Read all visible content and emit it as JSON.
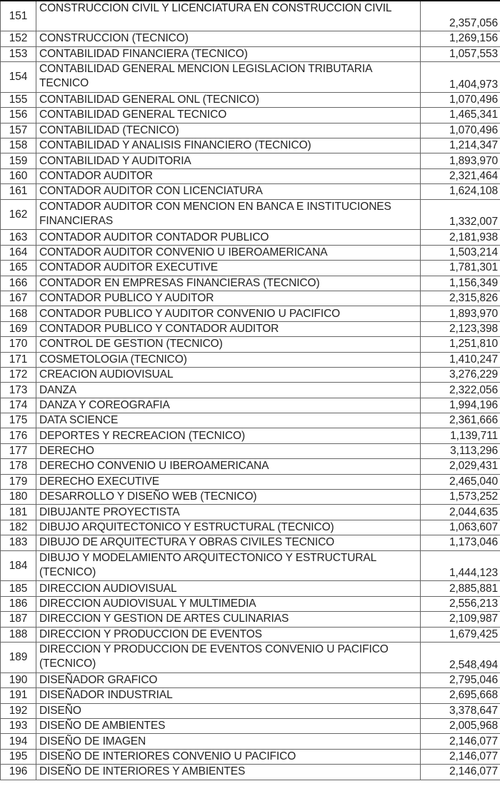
{
  "table": {
    "rows": [
      {
        "num": "151",
        "name": "CONSTRUCCION CIVIL Y LICENCIATURA EN CONSTRUCCION CIVIL",
        "value": "2,357,056",
        "wrap": true
      },
      {
        "num": "152",
        "name": "CONSTRUCCION (TECNICO)",
        "value": "1,269,156"
      },
      {
        "num": "153",
        "name": "CONTABILIDAD FINANCIERA (TECNICO)",
        "value": "1,057,553"
      },
      {
        "num": "154",
        "name": "CONTABILIDAD GENERAL MENCION LEGISLACION TRIBUTARIA TECNICO",
        "value": "1,404,973",
        "wrap": true
      },
      {
        "num": "155",
        "name": "CONTABILIDAD GENERAL ONL (TECNICO)",
        "value": "1,070,496"
      },
      {
        "num": "156",
        "name": "CONTABILIDAD GENERAL TECNICO",
        "value": "1,465,341"
      },
      {
        "num": "157",
        "name": "CONTABILIDAD (TECNICO)",
        "value": "1,070,496"
      },
      {
        "num": "158",
        "name": "CONTABILIDAD Y ANALISIS FINANCIERO (TECNICO)",
        "value": "1,214,347"
      },
      {
        "num": "159",
        "name": "CONTABILIDAD Y AUDITORIA",
        "value": "1,893,970"
      },
      {
        "num": "160",
        "name": "CONTADOR AUDITOR",
        "value": "2,321,464"
      },
      {
        "num": "161",
        "name": "CONTADOR AUDITOR CON LICENCIATURA",
        "value": "1,624,108"
      },
      {
        "num": "162",
        "name": "CONTADOR AUDITOR CON MENCION EN BANCA E INSTITUCIONES FINANCIERAS",
        "value": "1,332,007",
        "wrap": true
      },
      {
        "num": "163",
        "name": "CONTADOR AUDITOR CONTADOR PUBLICO",
        "value": "2,181,938"
      },
      {
        "num": "164",
        "name": "CONTADOR AUDITOR CONVENIO U IBEROAMERICANA",
        "value": "1,503,214"
      },
      {
        "num": "165",
        "name": "CONTADOR AUDITOR EXECUTIVE",
        "value": "1,781,301"
      },
      {
        "num": "166",
        "name": "CONTADOR EN EMPRESAS FINANCIERAS (TECNICO)",
        "value": "1,156,349"
      },
      {
        "num": "167",
        "name": "CONTADOR PUBLICO Y AUDITOR",
        "value": "2,315,826"
      },
      {
        "num": "168",
        "name": "CONTADOR PUBLICO Y AUDITOR CONVENIO U PACIFICO",
        "value": "1,893,970"
      },
      {
        "num": "169",
        "name": "CONTADOR PUBLICO Y CONTADOR AUDITOR",
        "value": "2,123,398"
      },
      {
        "num": "170",
        "name": "CONTROL DE GESTION (TECNICO)",
        "value": "1,251,810"
      },
      {
        "num": "171",
        "name": "COSMETOLOGIA (TECNICO)",
        "value": "1,410,247"
      },
      {
        "num": "172",
        "name": "CREACION AUDIOVISUAL",
        "value": "3,276,229"
      },
      {
        "num": "173",
        "name": "DANZA",
        "value": "2,322,056"
      },
      {
        "num": "174",
        "name": "DANZA Y COREOGRAFIA",
        "value": "1,994,196"
      },
      {
        "num": "175",
        "name": "DATA SCIENCE",
        "value": "2,361,666"
      },
      {
        "num": "176",
        "name": "DEPORTES Y RECREACION (TECNICO)",
        "value": "1,139,711"
      },
      {
        "num": "177",
        "name": "DERECHO",
        "value": "3,113,296"
      },
      {
        "num": "178",
        "name": "DERECHO CONVENIO U IBEROAMERICANA",
        "value": "2,029,431"
      },
      {
        "num": "179",
        "name": "DERECHO EXECUTIVE",
        "value": "2,465,040"
      },
      {
        "num": "180",
        "name": "DESARROLLO Y DISEÑO WEB (TECNICO)",
        "value": "1,573,252"
      },
      {
        "num": "181",
        "name": "DIBUJANTE PROYECTISTA",
        "value": "2,044,635"
      },
      {
        "num": "182",
        "name": "DIBUJO ARQUITECTONICO Y ESTRUCTURAL (TECNICO)",
        "value": "1,063,607"
      },
      {
        "num": "183",
        "name": "DIBUJO DE ARQUITECTURA Y OBRAS CIVILES TECNICO",
        "value": "1,173,046"
      },
      {
        "num": "184",
        "name": "DIBUJO Y MODELAMIENTO ARQUITECTONICO Y ESTRUCTURAL (TECNICO)",
        "value": "1,444,123",
        "wrap": true
      },
      {
        "num": "185",
        "name": "DIRECCION AUDIOVISUAL",
        "value": "2,885,881"
      },
      {
        "num": "186",
        "name": "DIRECCION AUDIOVISUAL Y MULTIMEDIA",
        "value": "2,556,213"
      },
      {
        "num": "187",
        "name": "DIRECCION Y GESTION DE ARTES CULINARIAS",
        "value": "2,109,987"
      },
      {
        "num": "188",
        "name": "DIRECCION Y PRODUCCION DE EVENTOS",
        "value": "1,679,425"
      },
      {
        "num": "189",
        "name": "DIRECCION Y PRODUCCION DE EVENTOS CONVENIO U PACIFICO (TECNICO)",
        "value": "2,548,494",
        "wrap": true
      },
      {
        "num": "190",
        "name": "DISEÑADOR GRAFICO",
        "value": "2,795,046"
      },
      {
        "num": "191",
        "name": "DISEÑADOR INDUSTRIAL",
        "value": "2,695,668"
      },
      {
        "num": "192",
        "name": "DISEÑO",
        "value": "3,378,647"
      },
      {
        "num": "193",
        "name": "DISEÑO DE AMBIENTES",
        "value": "2,005,968"
      },
      {
        "num": "194",
        "name": "DISEÑO DE IMAGEN",
        "value": "2,146,077"
      },
      {
        "num": "195",
        "name": "DISEÑO DE INTERIORES CONVENIO U PACIFICO",
        "value": "2,146,077"
      },
      {
        "num": "196",
        "name": "DISEÑO DE INTERIORES Y AMBIENTES",
        "value": "2,146,077"
      }
    ]
  }
}
